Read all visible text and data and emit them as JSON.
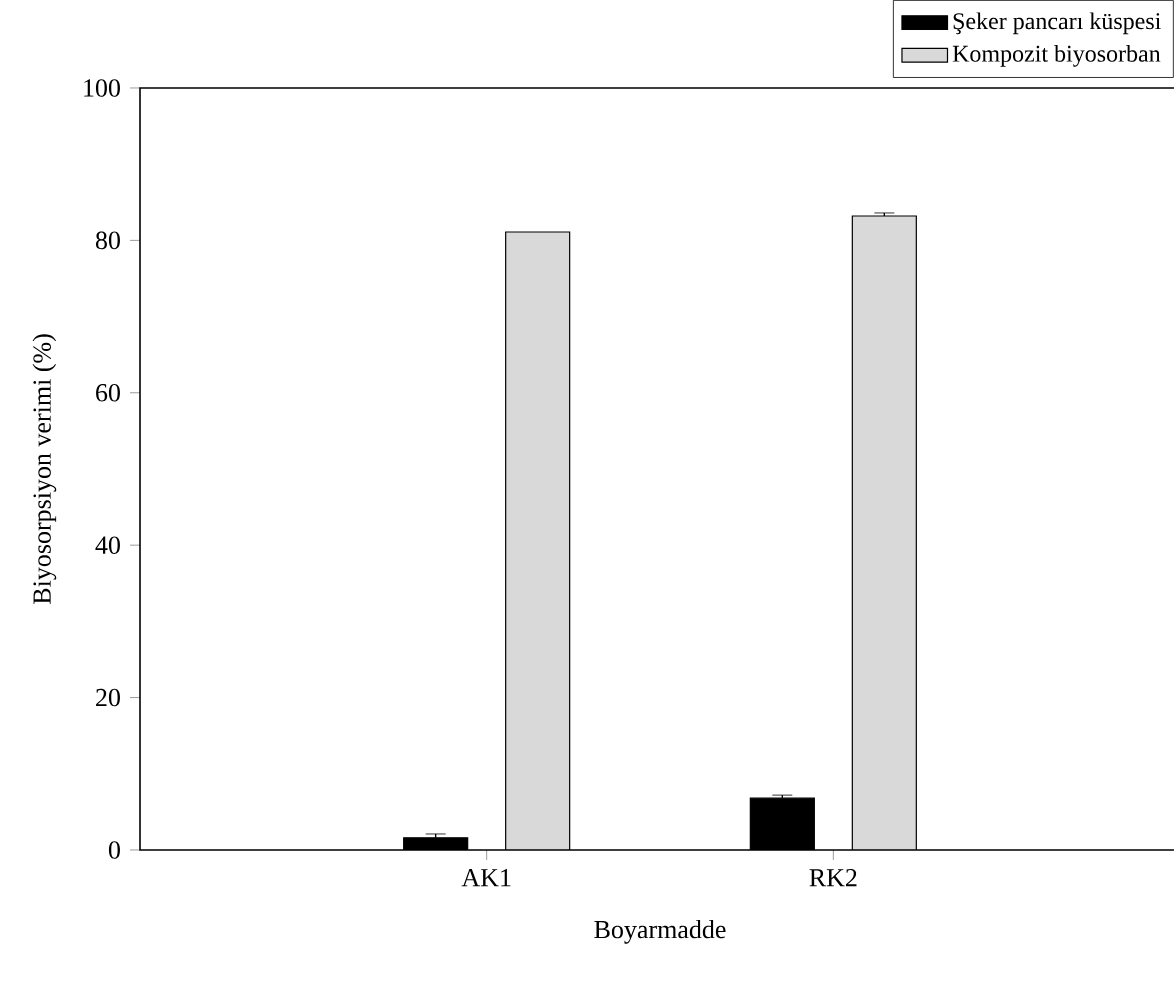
{
  "chart_data": {
    "type": "bar",
    "xlabel": "Boyarmadde",
    "ylabel": "Biyosorpsiyon verimi (%)",
    "categories": [
      "AK1",
      "RK2"
    ],
    "series": [
      {
        "name": "Şeker pancarı küspesi",
        "color": "#000000",
        "values": [
          1.6,
          6.8
        ],
        "errors": [
          0.5,
          0.4
        ]
      },
      {
        "name": "Kompozit biyosorban",
        "color": "#d9d9d9",
        "values": [
          81.1,
          83.2
        ],
        "errors": [
          null,
          0.4
        ]
      }
    ],
    "ylim": [
      0,
      100
    ],
    "yticks": [
      0,
      20,
      40,
      60,
      80,
      100
    ],
    "legend": "top right",
    "grid": false
  }
}
